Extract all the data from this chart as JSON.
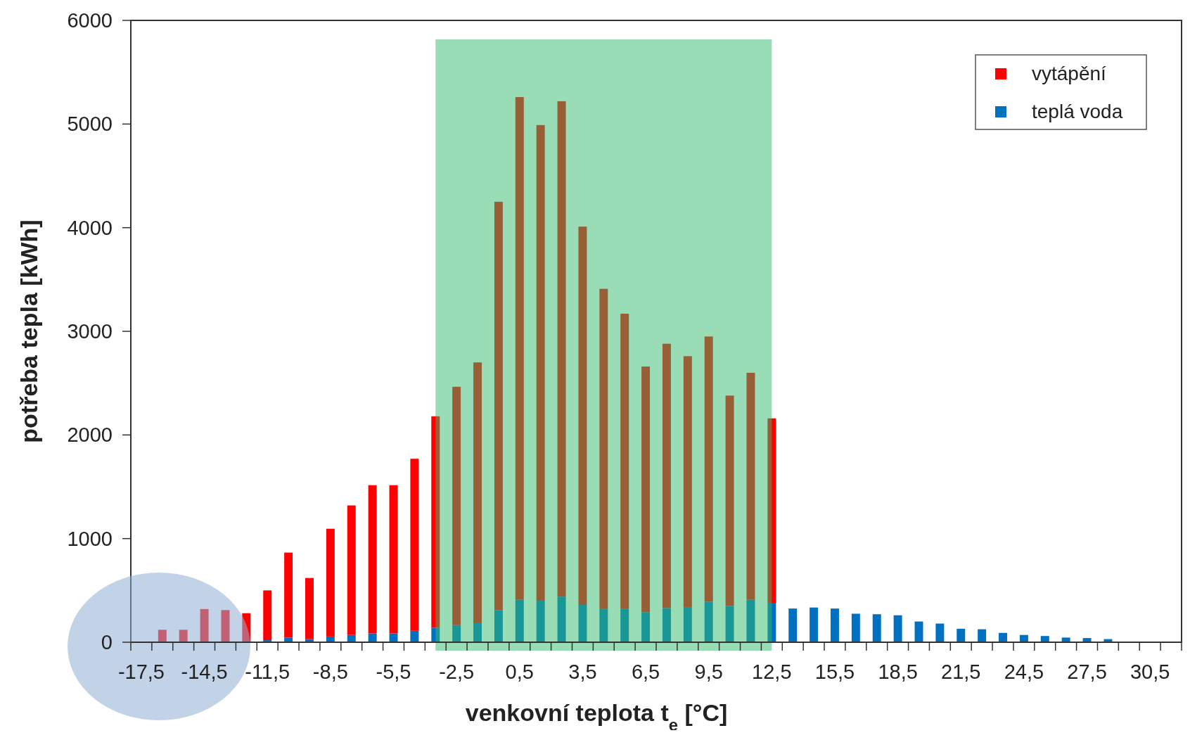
{
  "chart_data": {
    "type": "bar",
    "stacked": true,
    "xlabel": "venkovní teplota t$_{e}$ [°C]",
    "ylabel": "potřeba tepla [kWh]",
    "x": [
      -16.5,
      -15.5,
      -14.5,
      -13.5,
      -12.5,
      -11.5,
      -10.5,
      -9.5,
      -8.5,
      -7.5,
      -6.5,
      -5.5,
      -4.5,
      -3.5,
      -2.5,
      -1.5,
      -0.5,
      0.5,
      1.5,
      2.5,
      3.5,
      4.5,
      5.5,
      6.5,
      7.5,
      8.5,
      9.5,
      10.5,
      11.5,
      12.5,
      13.5,
      14.5,
      15.5,
      16.5,
      17.5,
      18.5,
      19.5,
      20.5,
      21.5,
      22.5,
      23.5,
      24.5,
      25.5,
      26.5,
      27.5,
      28.5
    ],
    "xlim": [
      -18,
      32
    ],
    "xticks": [
      {
        "value": -17.5,
        "label": "-17,5"
      },
      {
        "value": -14.5,
        "label": "-14,5"
      },
      {
        "value": -11.5,
        "label": "-11,5"
      },
      {
        "value": -8.5,
        "label": "-8,5"
      },
      {
        "value": -5.5,
        "label": "-5,5"
      },
      {
        "value": -2.5,
        "label": "-2,5"
      },
      {
        "value": 0.5,
        "label": "0,5"
      },
      {
        "value": 3.5,
        "label": "3,5"
      },
      {
        "value": 6.5,
        "label": "6,5"
      },
      {
        "value": 9.5,
        "label": "9,5"
      },
      {
        "value": 12.5,
        "label": "12,5"
      },
      {
        "value": 15.5,
        "label": "15,5"
      },
      {
        "value": 18.5,
        "label": "18,5"
      },
      {
        "value": 21.5,
        "label": "21,5"
      },
      {
        "value": 24.5,
        "label": "24,5"
      },
      {
        "value": 27.5,
        "label": "27,5"
      },
      {
        "value": 30.5,
        "label": "30,5"
      },
      {
        "value": -18,
        "label": null
      },
      {
        "value": -17,
        "label": null
      },
      {
        "value": -16,
        "label": null
      },
      {
        "value": -15,
        "label": null
      },
      {
        "value": -14,
        "label": null
      },
      {
        "value": -13,
        "label": null
      },
      {
        "value": -12,
        "label": null
      },
      {
        "value": -11,
        "label": null
      },
      {
        "value": -10,
        "label": null
      },
      {
        "value": -9,
        "label": null
      },
      {
        "value": -8,
        "label": null
      },
      {
        "value": -7,
        "label": null
      },
      {
        "value": -6,
        "label": null
      },
      {
        "value": -5,
        "label": null
      },
      {
        "value": -4,
        "label": null
      },
      {
        "value": -3,
        "label": null
      },
      {
        "value": -2,
        "label": null
      },
      {
        "value": -1,
        "label": null
      },
      {
        "value": 0,
        "label": null
      },
      {
        "value": 1,
        "label": null
      },
      {
        "value": 2,
        "label": null
      },
      {
        "value": 3,
        "label": null
      },
      {
        "value": 4,
        "label": null
      },
      {
        "value": 5,
        "label": null
      },
      {
        "value": 6,
        "label": null
      },
      {
        "value": 7,
        "label": null
      },
      {
        "value": 8,
        "label": null
      },
      {
        "value": 9,
        "label": null
      },
      {
        "value": 10,
        "label": null
      },
      {
        "value": 11,
        "label": null
      },
      {
        "value": 12,
        "label": null
      },
      {
        "value": 13,
        "label": null
      },
      {
        "value": 14,
        "label": null
      },
      {
        "value": 15,
        "label": null
      },
      {
        "value": 16,
        "label": null
      },
      {
        "value": 17,
        "label": null
      },
      {
        "value": 18,
        "label": null
      },
      {
        "value": 19,
        "label": null
      },
      {
        "value": 20,
        "label": null
      },
      {
        "value": 21,
        "label": null
      },
      {
        "value": 22,
        "label": null
      },
      {
        "value": 23,
        "label": null
      },
      {
        "value": 24,
        "label": null
      },
      {
        "value": 25,
        "label": null
      },
      {
        "value": 26,
        "label": null
      },
      {
        "value": 27,
        "label": null
      },
      {
        "value": 28,
        "label": null
      },
      {
        "value": 29,
        "label": null
      },
      {
        "value": 30,
        "label": null
      },
      {
        "value": 31,
        "label": null
      },
      {
        "value": 32,
        "label": null
      }
    ],
    "series": [
      {
        "name": "teplá voda",
        "color": "#0070c0",
        "values": [
          0,
          0,
          0,
          0,
          0,
          20,
          45,
          30,
          55,
          70,
          85,
          85,
          110,
          140,
          165,
          190,
          310,
          410,
          400,
          440,
          360,
          320,
          320,
          290,
          330,
          340,
          390,
          350,
          410,
          380,
          325,
          335,
          325,
          275,
          270,
          260,
          200,
          180,
          130,
          125,
          90,
          70,
          60,
          45,
          40,
          30
        ]
      },
      {
        "name": "vytápění",
        "color": "#ff0000",
        "values": [
          120,
          120,
          320,
          310,
          280,
          480,
          820,
          590,
          1040,
          1250,
          1430,
          1430,
          1660,
          2040,
          2300,
          2510,
          3940,
          4850,
          4590,
          4780,
          3650,
          3090,
          2850,
          2370,
          2550,
          2420,
          2560,
          2030,
          2190,
          1780,
          null,
          null,
          null,
          null,
          null,
          null,
          null,
          null,
          null,
          null,
          null,
          null,
          null,
          null,
          null,
          null
        ]
      }
    ],
    "ylim": [
      0,
      6000
    ],
    "yticks": [
      0,
      1000,
      2000,
      3000,
      4000,
      5000,
      6000
    ],
    "bands": [
      {
        "axis": "x",
        "from": -3.5,
        "to": 12.5,
        "color": "#31bb6b"
      }
    ],
    "legend": "top right"
  }
}
